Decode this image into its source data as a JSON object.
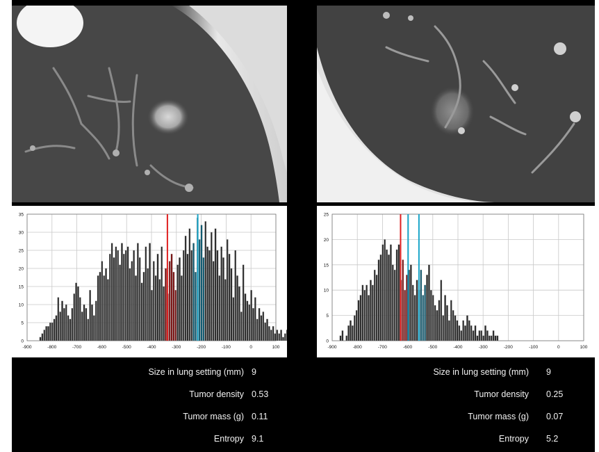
{
  "colors": {
    "panel_bg": "#000000",
    "bar": "#2a2a2a",
    "bar_edge": "#9a9a9a",
    "red_line": "#e02020",
    "blue_line": "#1aa6c9",
    "grid": "#c8c8c8"
  },
  "panels": [
    {
      "id": "left",
      "stats": [
        {
          "label": "Size in lung setting (mm)",
          "value": "9"
        },
        {
          "label": "Tumor density",
          "value": "0.53"
        },
        {
          "label": "Tumor mass (g)",
          "value": "0.11"
        },
        {
          "label": "Entropy",
          "value": "9.1"
        }
      ]
    },
    {
      "id": "right",
      "stats": [
        {
          "label": "Size in lung setting (mm)",
          "value": "9"
        },
        {
          "label": "Tumor density",
          "value": "0.25"
        },
        {
          "label": "Tumor mass (g)",
          "value": "0.07"
        },
        {
          "label": "Entropy",
          "value": "5.2"
        }
      ]
    }
  ],
  "chart_data": [
    {
      "type": "bar",
      "grid": true,
      "xlim": [
        -900,
        100
      ],
      "ylim": [
        0,
        35
      ],
      "xticks": [
        -900,
        -800,
        -700,
        -600,
        -500,
        -400,
        -300,
        -200,
        -100,
        0,
        100
      ],
      "yticks": [
        0,
        5,
        10,
        15,
        20,
        25,
        30,
        35
      ],
      "bin_width": 8,
      "x_start": -850,
      "values": [
        1,
        2,
        3,
        4,
        4,
        5,
        5,
        6,
        7,
        12,
        8,
        11,
        9,
        10,
        7,
        6,
        9,
        13,
        16,
        15,
        12,
        8,
        10,
        9,
        6,
        14,
        10,
        7,
        11,
        18,
        19,
        22,
        18,
        20,
        17,
        24,
        27,
        23,
        26,
        25,
        21,
        27,
        24,
        25,
        26,
        20,
        22,
        25,
        18,
        27,
        23,
        16,
        19,
        26,
        20,
        27,
        14,
        22,
        18,
        24,
        17,
        26,
        15,
        20,
        13,
        22,
        24,
        19,
        14,
        21,
        23,
        18,
        25,
        29,
        24,
        31,
        25,
        27,
        19,
        34,
        28,
        32,
        23,
        33,
        26,
        25,
        30,
        22,
        31,
        25,
        18,
        26,
        23,
        17,
        28,
        24,
        20,
        12,
        25,
        18,
        15,
        8,
        21,
        13,
        11,
        10,
        14,
        9,
        12,
        6,
        9,
        7,
        8,
        5,
        6,
        4,
        3,
        4,
        2,
        3,
        2,
        3,
        1,
        2,
        3,
        1,
        2,
        2
      ],
      "highlight_ranges": [
        {
          "from": -346,
          "to": -302,
          "color": "#7a1010"
        },
        {
          "from": -234,
          "to": -186,
          "color": "#0f5a70"
        }
      ],
      "vlines": [
        {
          "x": -336,
          "color": "#e02020"
        },
        {
          "x": -214,
          "color": "#1aa6c9"
        }
      ]
    },
    {
      "type": "bar",
      "grid": true,
      "xlim": [
        -900,
        100
      ],
      "ylim": [
        0,
        25
      ],
      "xticks": [
        -900,
        -800,
        -700,
        -600,
        -500,
        -400,
        -300,
        -200,
        -100,
        0,
        100
      ],
      "yticks": [
        0,
        5,
        10,
        15,
        20,
        25
      ],
      "bin_width": 8,
      "x_start": -870,
      "values": [
        1,
        2,
        0,
        1,
        3,
        4,
        3,
        5,
        6,
        8,
        9,
        11,
        10,
        11,
        9,
        12,
        11,
        14,
        13,
        16,
        17,
        19,
        20,
        18,
        17,
        19,
        15,
        14,
        18,
        19,
        12,
        16,
        10,
        13,
        14,
        15,
        11,
        9,
        12,
        10,
        14,
        9,
        11,
        13,
        15,
        10,
        9,
        7,
        6,
        8,
        12,
        5,
        9,
        7,
        4,
        8,
        6,
        5,
        4,
        3,
        2,
        4,
        3,
        5,
        4,
        3,
        2,
        3,
        1,
        2,
        2,
        1,
        3,
        2,
        1,
        1,
        2,
        1,
        1
      ],
      "highlight_ranges": [
        {
          "from": -630,
          "to": -598,
          "color": "#7a1010"
        },
        {
          "from": -560,
          "to": -528,
          "color": "#0f5a70"
        }
      ],
      "vlines": [
        {
          "x": -628,
          "color": "#e02020"
        },
        {
          "x": -555,
          "color": "#1aa6c9"
        },
        {
          "x": -598,
          "color": "#1aa6c9"
        }
      ]
    }
  ]
}
